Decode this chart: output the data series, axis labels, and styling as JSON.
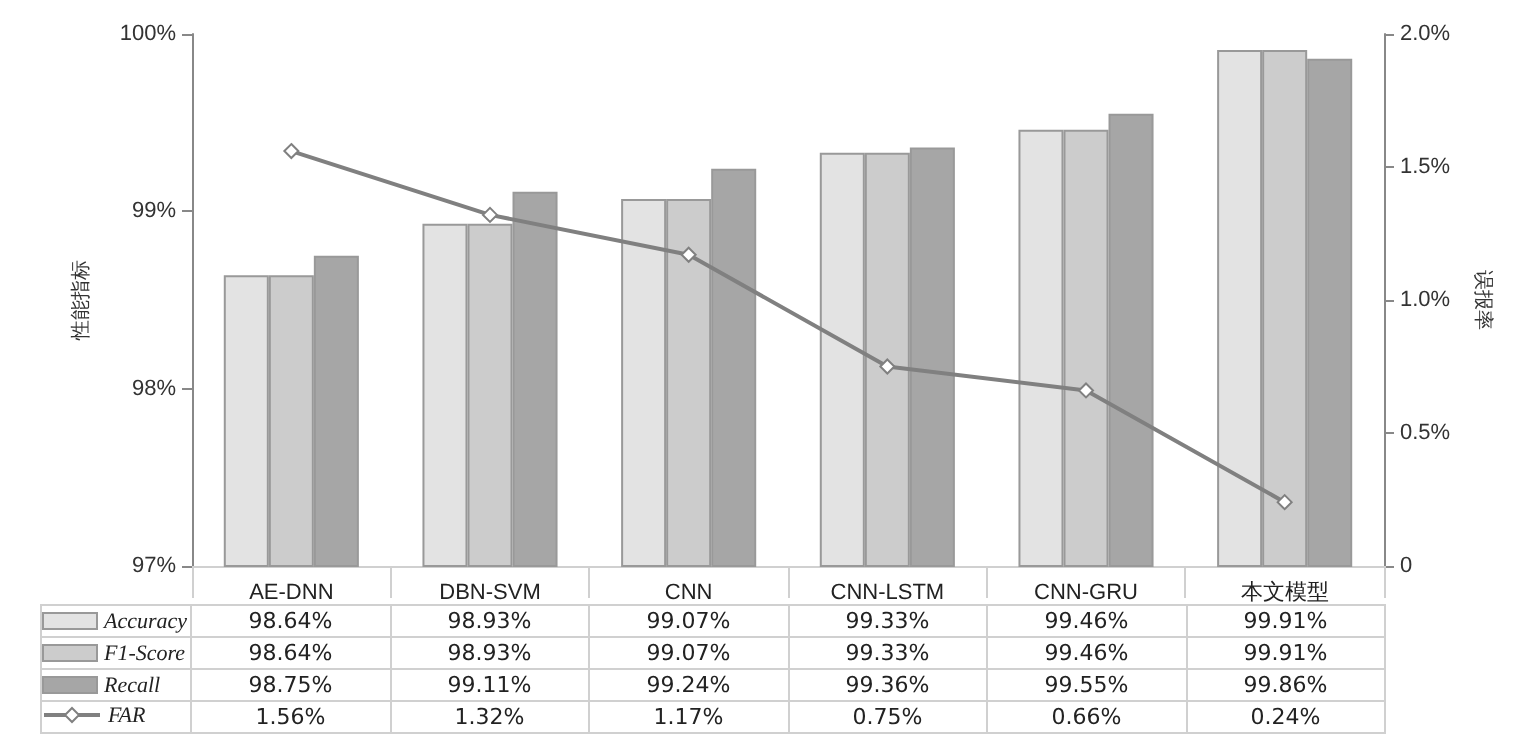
{
  "chart_data": {
    "type": "bar",
    "ylabel": "性能指标",
    "y2label": "误报率",
    "categories": [
      "AE-DNN",
      "DBN-SVM",
      "CNN",
      "CNN-LSTM",
      "CNN-GRU",
      "本文模型"
    ],
    "series": [
      {
        "name": "Accuracy",
        "color": "#e3e3e3",
        "values": [
          98.64,
          98.93,
          99.07,
          99.33,
          99.46,
          99.91
        ],
        "value_labels": [
          "98.64%",
          "98.93%",
          "99.07%",
          "99.33%",
          "99.46%",
          "99.91%"
        ]
      },
      {
        "name": "F1-Score",
        "color": "#cccccc",
        "values": [
          98.64,
          98.93,
          99.07,
          99.33,
          99.46,
          99.91
        ],
        "value_labels": [
          "98.64%",
          "98.93%",
          "99.07%",
          "99.33%",
          "99.46%",
          "99.91%"
        ]
      },
      {
        "name": "Recall",
        "color": "#a6a6a6",
        "values": [
          98.75,
          99.11,
          99.24,
          99.36,
          99.55,
          99.86
        ],
        "value_labels": [
          "98.75%",
          "99.11%",
          "99.24%",
          "99.36%",
          "99.55%",
          "99.86%"
        ]
      },
      {
        "name": "FAR",
        "type": "line",
        "axis": "y2",
        "color": "#808080",
        "marker": "diamond",
        "values": [
          1.56,
          1.32,
          1.17,
          0.75,
          0.66,
          0.24
        ],
        "value_labels": [
          "1.56%",
          "1.32%",
          "1.17%",
          "0.75%",
          "0.66%",
          "0.24%"
        ]
      }
    ],
    "ylim": [
      97,
      100
    ],
    "yticks": [
      {
        "value": 97,
        "label": "97%"
      },
      {
        "value": 98,
        "label": "98%"
      },
      {
        "value": 99,
        "label": "99%"
      },
      {
        "value": 100,
        "label": "100%"
      }
    ],
    "y2lim": [
      0,
      2
    ],
    "y2ticks": [
      0,
      {
        "value": 0.5,
        "label": "0.5%"
      },
      {
        "value": 1,
        "label": "1.0%"
      },
      {
        "value": 1.5,
        "label": "1.5%"
      },
      {
        "value": 2,
        "label": "2.0%"
      }
    ],
    "legend": "bottom",
    "grid": false
  }
}
